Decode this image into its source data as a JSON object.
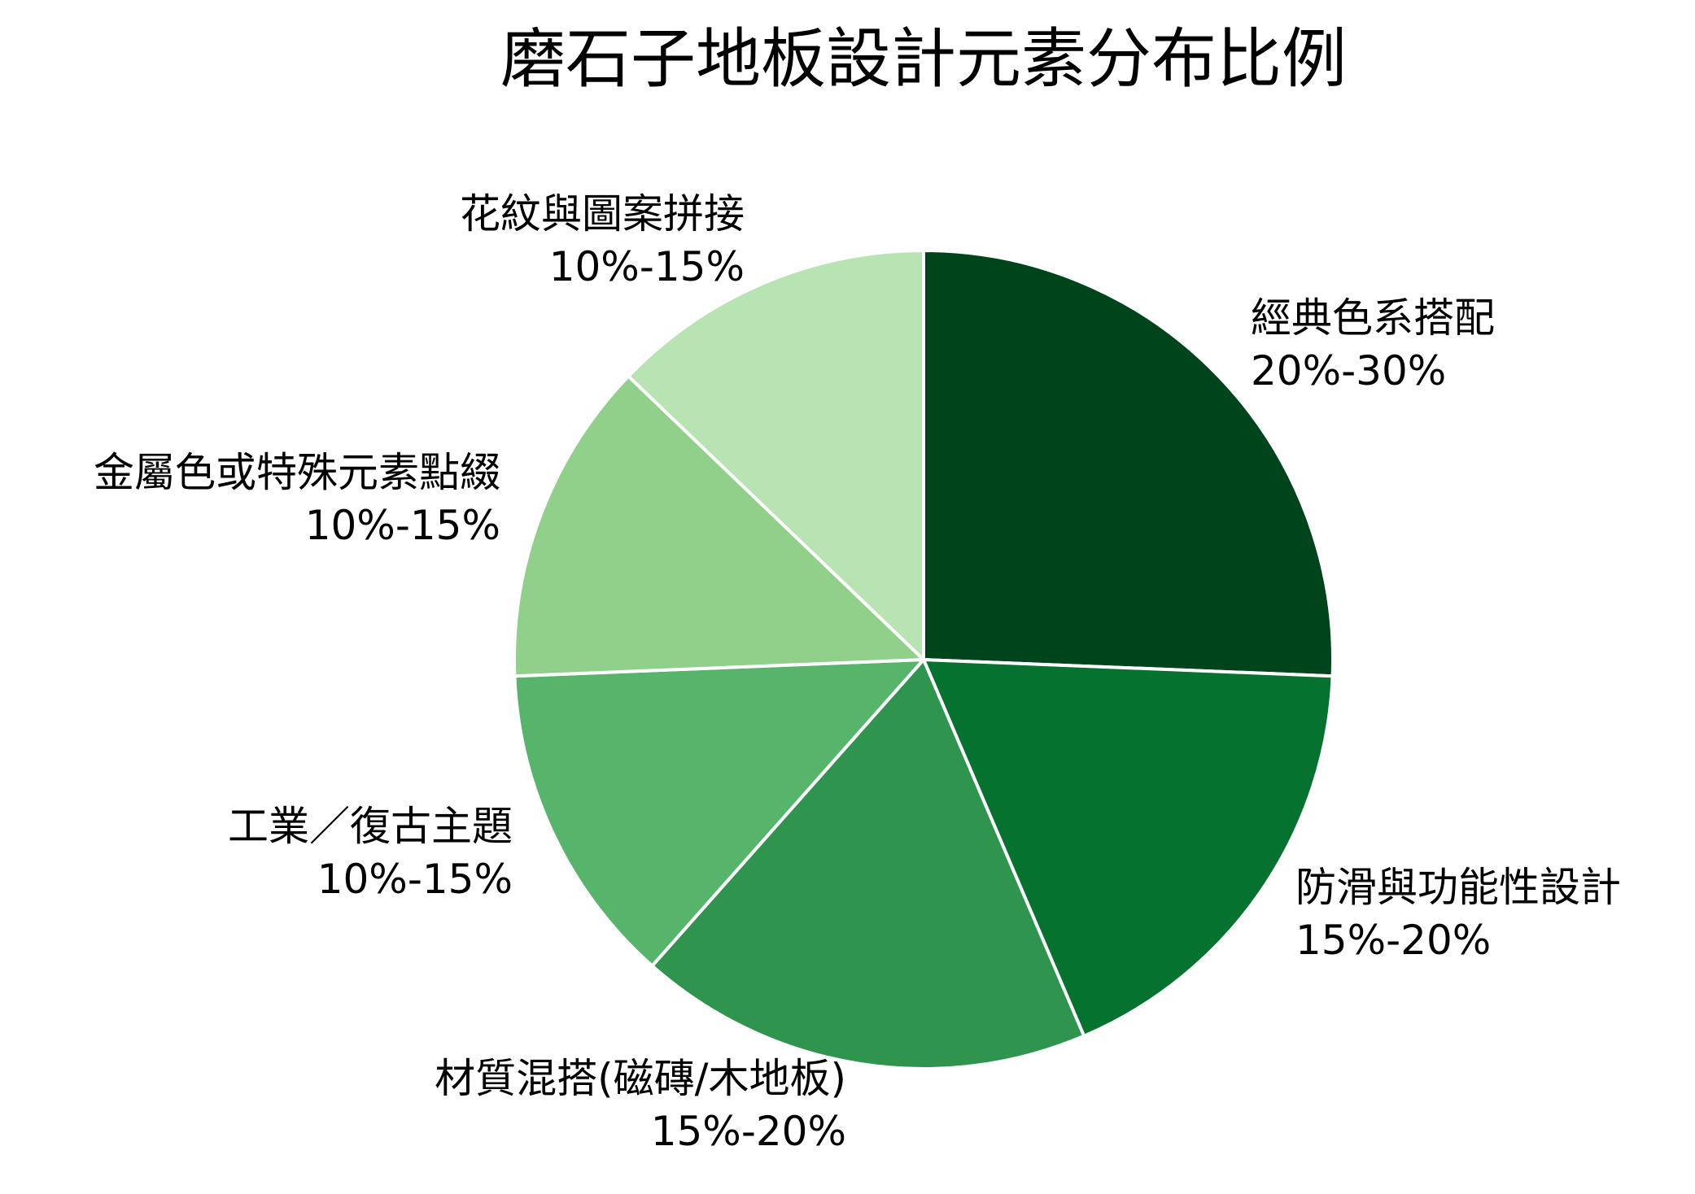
{
  "chart_data": {
    "type": "pie",
    "title": "磨石子地板設計元素分布比例",
    "slices": [
      {
        "label": "經典色系搭配",
        "range": "20%-30%",
        "value": 25,
        "color": "#00441b"
      },
      {
        "label": "防滑與功能性設計",
        "range": "15%-20%",
        "value": 17.5,
        "color": "#067230"
      },
      {
        "label": "材質混搭(磁磚/木地板)",
        "range": "15%-20%",
        "value": 17.5,
        "color": "#2e944e"
      },
      {
        "label": "工業／復古主題",
        "range": "10%-15%",
        "value": 12.5,
        "color": "#56b56b"
      },
      {
        "label": "金屬色或特殊元素點綴",
        "range": "10%-15%",
        "value": 12.5,
        "color": "#90d08a"
      },
      {
        "label": "花紋與圖案拼接",
        "range": "10%-15%",
        "value": 12.5,
        "color": "#b8e3b2"
      }
    ],
    "start": "12 o'clock",
    "direction": "clockwise",
    "slice_border_color": "#ffffff"
  }
}
